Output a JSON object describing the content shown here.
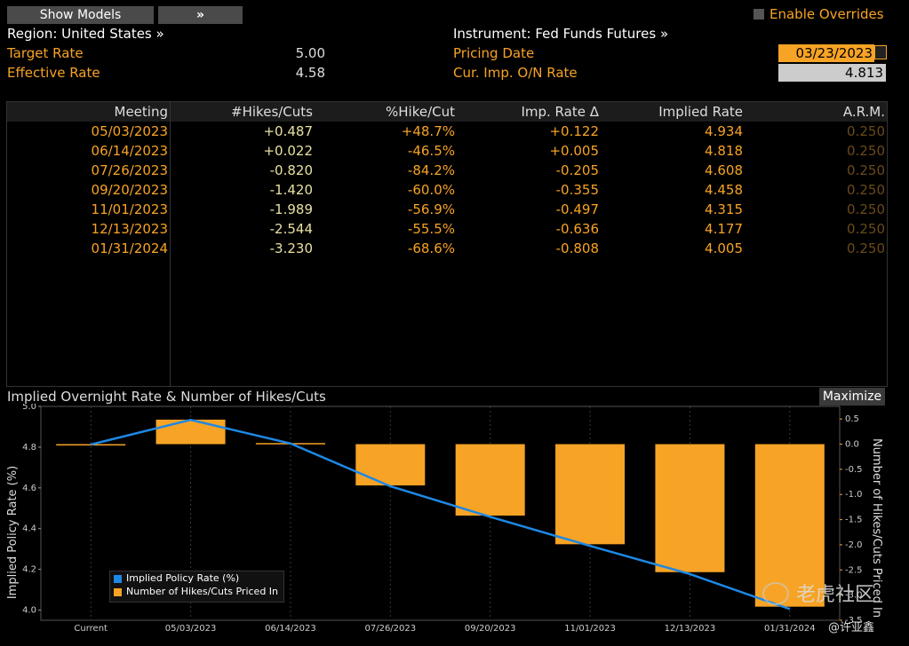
{
  "toolbar": {
    "show_models": "Show Models",
    "expand": "»",
    "enable_overrides": "Enable Overrides"
  },
  "header": {
    "region": "Region: United States »",
    "instrument": "Instrument: Fed Funds Futures »",
    "target_rate_label": "Target Rate",
    "target_rate_value": "5.00",
    "effective_rate_label": "Effective Rate",
    "effective_rate_value": "4.58",
    "pricing_date_label": "Pricing Date",
    "pricing_date_value": "03/23/2023",
    "imp_on_rate_label": "Cur. Imp. O/N Rate",
    "imp_on_rate_value": "4.813"
  },
  "table": {
    "columns": [
      "Meeting",
      "#Hikes/Cuts",
      "%Hike/Cut",
      "Imp. Rate Δ",
      "Implied Rate",
      "A.R.M."
    ],
    "rows": [
      {
        "meeting": "05/03/2023",
        "hikes": "+0.487",
        "pct": "+48.7%",
        "delta": "+0.122",
        "implied": "4.934",
        "arm": "0.250"
      },
      {
        "meeting": "06/14/2023",
        "hikes": "+0.022",
        "pct": "-46.5%",
        "delta": "+0.005",
        "implied": "4.818",
        "arm": "0.250"
      },
      {
        "meeting": "07/26/2023",
        "hikes": "-0.820",
        "pct": "-84.2%",
        "delta": "-0.205",
        "implied": "4.608",
        "arm": "0.250"
      },
      {
        "meeting": "09/20/2023",
        "hikes": "-1.420",
        "pct": "-60.0%",
        "delta": "-0.355",
        "implied": "4.458",
        "arm": "0.250"
      },
      {
        "meeting": "11/01/2023",
        "hikes": "-1.989",
        "pct": "-56.9%",
        "delta": "-0.497",
        "implied": "4.315",
        "arm": "0.250"
      },
      {
        "meeting": "12/13/2023",
        "hikes": "-2.544",
        "pct": "-55.5%",
        "delta": "-0.636",
        "implied": "4.177",
        "arm": "0.250"
      },
      {
        "meeting": "01/31/2024",
        "hikes": "-3.230",
        "pct": "-68.6%",
        "delta": "-0.808",
        "implied": "4.005",
        "arm": "0.250"
      }
    ]
  },
  "chart": {
    "title": "Implied Overnight Rate & Number of Hikes/Cuts",
    "maximize": "Maximize",
    "legend_line": "Implied Policy Rate (%)",
    "legend_bar": "Number of Hikes/Cuts Priced In",
    "colors": {
      "line": "#1e88e5",
      "bar": "#f7a325"
    }
  },
  "chart_data": {
    "type": "bar",
    "title": "Implied Overnight Rate & Number of Hikes/Cuts",
    "ylabel": "Implied Policy Rate (%)",
    "y2label": "Number of Hikes/Cuts Priced In",
    "categories": [
      "Current",
      "05/03/2023",
      "06/14/2023",
      "07/26/2023",
      "09/20/2023",
      "11/01/2023",
      "12/13/2023",
      "01/31/2024"
    ],
    "ylim": [
      3.95,
      5.0
    ],
    "y2lim": [
      -3.5,
      0.75
    ],
    "yticks": [
      "4.0",
      "4.2",
      "4.4",
      "4.6",
      "4.8",
      "5.0"
    ],
    "y2ticks": [
      "0.5",
      "0.0",
      "-0.5",
      "-1.0",
      "-1.5",
      "-2.0",
      "-2.5",
      "-3.0",
      "-3.5"
    ],
    "series": [
      {
        "name": "Implied Policy Rate (%)",
        "kind": "line",
        "axis": "left",
        "values": [
          4.813,
          4.934,
          4.818,
          4.608,
          4.458,
          4.315,
          4.177,
          4.005
        ]
      },
      {
        "name": "Number of Hikes/Cuts Priced In",
        "kind": "bar",
        "axis": "right",
        "values": [
          0.0,
          0.487,
          0.022,
          -0.82,
          -1.42,
          -1.989,
          -2.544,
          -3.23
        ]
      }
    ]
  },
  "watermark": {
    "brand": "老虎社区",
    "author": "@许亚鑫"
  }
}
